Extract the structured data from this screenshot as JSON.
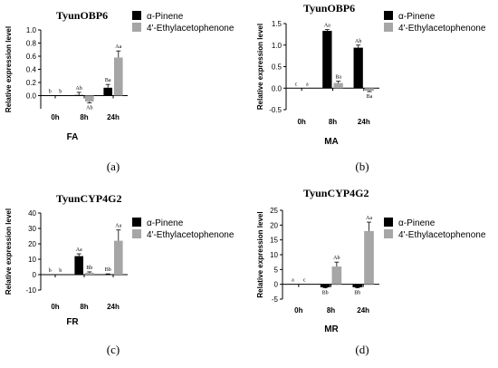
{
  "chart_data": [
    {
      "type": "bar",
      "title": "TyunOBP6",
      "ylabel": "Relative expression level",
      "xlabel": "FA",
      "panel_label": "(a)",
      "categories": [
        "0h",
        "8h",
        "24h"
      ],
      "ylim": [
        -0.2,
        1.0
      ],
      "yticks": [
        "0.0",
        "0.2",
        "0.4",
        "0.6",
        "0.8",
        "1.0"
      ],
      "grid": false,
      "legend_position": "top-right",
      "series": [
        {
          "name": "α-Pinene",
          "color": "#000000",
          "values": [
            0,
            0.01,
            0.12
          ],
          "errors": [
            0,
            0.04,
            0.05
          ],
          "sig": [
            "b",
            "Ab",
            "Ba"
          ]
        },
        {
          "name": "4'-Ethylacetophenone",
          "color": "#a6a6a6",
          "values": [
            0,
            -0.09,
            0.58
          ],
          "errors": [
            0,
            0.02,
            0.1
          ],
          "sig": [
            "b",
            "Ab",
            "Aa"
          ]
        }
      ]
    },
    {
      "type": "bar",
      "title": "TyunOBP6",
      "ylabel": "Relative expression level",
      "xlabel": "MA",
      "panel_label": "(b)",
      "categories": [
        "0h",
        "8h",
        "24h"
      ],
      "ylim": [
        -0.5,
        1.5
      ],
      "yticks": [
        "-0.5",
        "0.0",
        "0.5",
        "1.0",
        "1.5"
      ],
      "grid": false,
      "legend_position": "top-right",
      "series": [
        {
          "name": "α-Pinene",
          "color": "#000000",
          "values": [
            0,
            1.33,
            0.94
          ],
          "errors": [
            0,
            0.03,
            0.06
          ],
          "sig": [
            "c",
            "Aa",
            "Ab"
          ]
        },
        {
          "name": "4'-Ethylacetophenone",
          "color": "#a6a6a6",
          "values": [
            0,
            0.12,
            -0.06
          ],
          "errors": [
            0,
            0.04,
            0.02
          ],
          "sig": [
            "a",
            "Ba",
            "Ba"
          ]
        }
      ]
    },
    {
      "type": "bar",
      "title": "TyunCYP4G2",
      "ylabel": "Relative expression level",
      "xlabel": "FR",
      "panel_label": "(c)",
      "categories": [
        "0h",
        "8h",
        "24h"
      ],
      "ylim": [
        -10,
        40
      ],
      "yticks": [
        "-10",
        "0",
        "10",
        "20",
        "30",
        "40"
      ],
      "grid": false,
      "legend_position": "top-right",
      "series": [
        {
          "name": "α-Pinene",
          "color": "#000000",
          "values": [
            0,
            12,
            0.3
          ],
          "errors": [
            0,
            1.5,
            0.2
          ],
          "sig": [
            "b",
            "Aa",
            "Bb"
          ]
        },
        {
          "name": "4'-Ethylacetophenone",
          "color": "#a6a6a6",
          "values": [
            0,
            1.2,
            22
          ],
          "errors": [
            0,
            0.6,
            7
          ],
          "sig": [
            "b",
            "Bb",
            "Aa"
          ]
        }
      ]
    },
    {
      "type": "bar",
      "title": "TyunCYP4G2",
      "ylabel": "Relative expression level",
      "xlabel": "MR",
      "panel_label": "(d)",
      "categories": [
        "0h",
        "8h",
        "24h"
      ],
      "ylim": [
        -5,
        25
      ],
      "yticks": [
        "-5",
        "0",
        "5",
        "10",
        "15",
        "20",
        "25"
      ],
      "grid": false,
      "legend_position": "top-right",
      "series": [
        {
          "name": "α-Pinene",
          "color": "#000000",
          "values": [
            0,
            -1.0,
            -1.0
          ],
          "errors": [
            0,
            0.2,
            0.2
          ],
          "sig": [
            "a",
            "Bb",
            "Bb"
          ]
        },
        {
          "name": "4'-Ethylacetophenone",
          "color": "#a6a6a6",
          "values": [
            0,
            6,
            18
          ],
          "errors": [
            0,
            1.5,
            3
          ],
          "sig": [
            "c",
            "Ab",
            "Aa"
          ]
        }
      ]
    }
  ]
}
